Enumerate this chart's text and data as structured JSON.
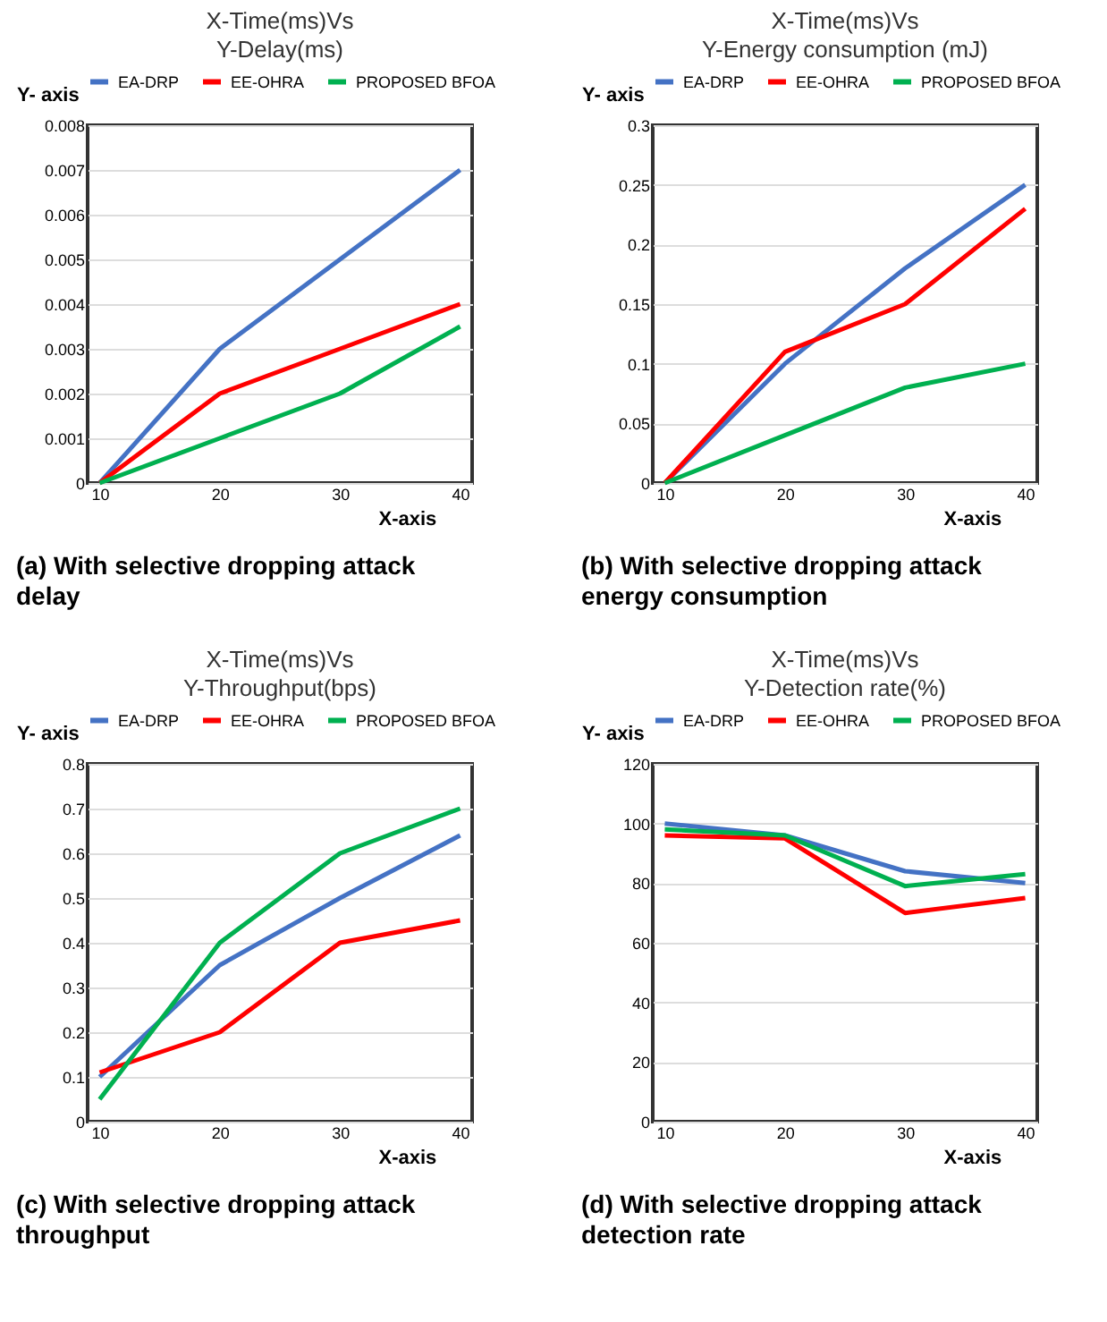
{
  "chart_data": [
    {
      "type": "line",
      "title": "X-Time(ms)Vs",
      "subtitle": "Y-Delay(ms)",
      "xlabel": "X-axis",
      "ylabel": "Y- axis",
      "categories": [
        "10",
        "20",
        "30",
        "40"
      ],
      "series": [
        {
          "name": "EA-DRP",
          "color": "#4472c4",
          "values": [
            0,
            0.003,
            0.005,
            0.007
          ]
        },
        {
          "name": "EE-OHRA",
          "color": "#ff0000",
          "values": [
            0,
            0.002,
            0.003,
            0.004
          ]
        },
        {
          "name": "PROPOSED BFOA",
          "color": "#00b050",
          "values": [
            0,
            0.001,
            0.002,
            0.0035
          ]
        }
      ],
      "ylim": [
        0,
        0.008
      ],
      "yticks": [
        0,
        0.001,
        0.002,
        0.003,
        0.004,
        0.005,
        0.006,
        0.007,
        0.008
      ],
      "grid": "y",
      "legend": "top",
      "marker": "none",
      "line_style": "solid",
      "annotations": [
        "(a) With selective dropping attack delay"
      ]
    },
    {
      "type": "line",
      "title": "X-Time(ms)Vs",
      "subtitle": "Y-Energy consumption (mJ)",
      "xlabel": "X-axis",
      "ylabel": "Y- axis",
      "categories": [
        "10",
        "20",
        "30",
        "40"
      ],
      "series": [
        {
          "name": "EA-DRP",
          "color": "#4472c4",
          "values": [
            0,
            0.1,
            0.18,
            0.25
          ]
        },
        {
          "name": "EE-OHRA",
          "color": "#ff0000",
          "values": [
            0,
            0.11,
            0.15,
            0.23
          ]
        },
        {
          "name": "PROPOSED BFOA",
          "color": "#00b050",
          "values": [
            0,
            0.04,
            0.08,
            0.1
          ]
        }
      ],
      "ylim": [
        0,
        0.3
      ],
      "yticks": [
        0,
        0.05,
        0.1,
        0.15,
        0.2,
        0.25,
        0.3
      ],
      "grid": "y",
      "legend": "top",
      "marker": "none",
      "line_style": "solid",
      "annotations": [
        "(b) With selective dropping attack energy consumption"
      ]
    },
    {
      "type": "line",
      "title": "X-Time(ms)Vs",
      "subtitle": "Y-Throughput(bps)",
      "xlabel": "X-axis",
      "ylabel": "Y- axis",
      "categories": [
        "10",
        "20",
        "30",
        "40"
      ],
      "series": [
        {
          "name": "EA-DRP",
          "color": "#4472c4",
          "values": [
            0.1,
            0.35,
            0.5,
            0.64
          ]
        },
        {
          "name": "EE-OHRA",
          "color": "#ff0000",
          "values": [
            0.11,
            0.2,
            0.4,
            0.45
          ]
        },
        {
          "name": "PROPOSED BFOA",
          "color": "#00b050",
          "values": [
            0.05,
            0.4,
            0.6,
            0.7
          ]
        }
      ],
      "ylim": [
        0,
        0.8
      ],
      "yticks": [
        0,
        0.1,
        0.2,
        0.3,
        0.4,
        0.5,
        0.6,
        0.7,
        0.8
      ],
      "grid": "y",
      "legend": "top",
      "marker": "none",
      "line_style": "solid",
      "annotations": [
        "(c) With selective dropping attack throughput"
      ]
    },
    {
      "type": "line",
      "title": "X-Time(ms)Vs",
      "subtitle": "Y-Detection rate(%)",
      "xlabel": "X-axis",
      "ylabel": "Y- axis",
      "categories": [
        "10",
        "20",
        "30",
        "40"
      ],
      "series": [
        {
          "name": "EA-DRP",
          "color": "#4472c4",
          "values": [
            100,
            96,
            84,
            80
          ]
        },
        {
          "name": "EE-OHRA",
          "color": "#ff0000",
          "values": [
            96,
            95,
            70,
            75
          ]
        },
        {
          "name": "PROPOSED BFOA",
          "color": "#00b050",
          "values": [
            98,
            96,
            79,
            83
          ]
        }
      ],
      "ylim": [
        0,
        120
      ],
      "yticks": [
        0,
        20,
        40,
        60,
        80,
        100,
        120
      ],
      "grid": "y",
      "legend": "top",
      "marker": "none",
      "line_style": "solid",
      "annotations": [
        "(d) With selective dropping attack detection rate"
      ]
    }
  ]
}
